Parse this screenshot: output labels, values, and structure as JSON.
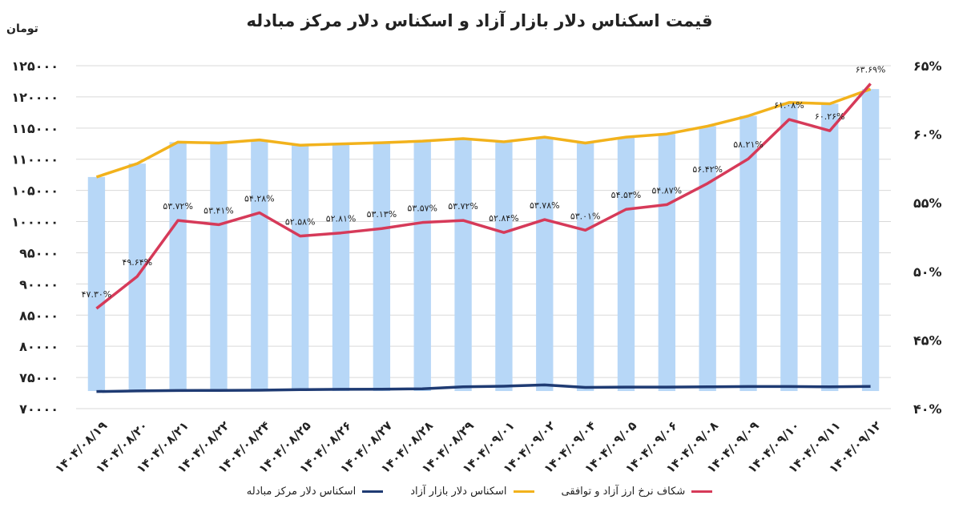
{
  "chart_data": {
    "type": "bar",
    "title": "قیمت اسکناس دلار بازار آزاد و اسکناس دلار مرکز مبادله",
    "y_unit": "تومان",
    "categories": [
      "۱۴۰۴/۰۸/۱۹",
      "۱۴۰۴/۰۸/۲۰",
      "۱۴۰۴/۰۸/۲۱",
      "۱۴۰۴/۰۸/۲۲",
      "۱۴۰۴/۰۸/۲۴",
      "۱۴۰۴/۰۸/۲۵",
      "۱۴۰۴/۰۸/۲۶",
      "۱۴۰۴/۰۸/۲۷",
      "۱۴۰۴/۰۸/۲۸",
      "۱۴۰۴/۰۸/۲۹",
      "۱۴۰۴/۰۹/۰۱",
      "۱۴۰۴/۰۹/۰۲",
      "۱۴۰۴/۰۹/۰۴",
      "۱۴۰۴/۰۹/۰۵",
      "۱۴۰۴/۰۹/۰۶",
      "۱۴۰۴/۰۹/۰۸",
      "۱۴۰۴/۰۹/۰۹",
      "۱۴۰۴/۰۹/۱۰",
      "۱۴۰۴/۰۹/۱۱",
      "۱۴۰۴/۰۹/۱۲"
    ],
    "ylim_left": [
      70000,
      125000
    ],
    "yticks_left": [
      "۷۰۰۰۰",
      "۷۵۰۰۰",
      "۸۰۰۰۰",
      "۸۵۰۰۰",
      "۹۰۰۰۰",
      "۹۵۰۰۰",
      "۱۰۰۰۰۰",
      "۱۰۵۰۰۰",
      "۱۱۰۰۰۰",
      "۱۱۵۰۰۰",
      "۱۲۰۰۰۰",
      "۱۲۵۰۰۰"
    ],
    "ylim_right": [
      40,
      65
    ],
    "yticks_right": [
      "۴۰%",
      "۴۵%",
      "۵۰%",
      "۵۵%",
      "۶۰%",
      "۶۵%"
    ],
    "grid": true,
    "legend_position": "bottom",
    "series": [
      {
        "name": "اسکناس دلار مرکز مبادله",
        "kind": "line",
        "axis": "left",
        "color": "#1f3b73",
        "values": [
          72740,
          72850,
          72900,
          72930,
          72960,
          73050,
          73100,
          73120,
          73180,
          73500,
          73600,
          73800,
          73400,
          73450,
          73450,
          73500,
          73550,
          73550,
          73500,
          73560
        ]
      },
      {
        "name": "اسکناس دلار بازار آزاد",
        "kind": "bar+line",
        "axis": "left",
        "bar_color": "#b7d7f7",
        "line_color": "#f2b21c",
        "values": [
          107150,
          109300,
          112750,
          112600,
          113100,
          112250,
          112450,
          112650,
          112900,
          113300,
          112800,
          113550,
          112600,
          113550,
          114050,
          115300,
          116950,
          119100,
          118900,
          121250
        ]
      },
      {
        "name": "شکاف نرخ ارز آزاد و توافقی",
        "kind": "line",
        "axis": "right",
        "color": "#d63a59",
        "values": [
          47.3,
          49.64,
          53.72,
          53.41,
          54.28,
          52.58,
          52.81,
          53.13,
          53.57,
          53.72,
          52.84,
          53.78,
          53.01,
          54.53,
          54.87,
          56.42,
          58.21,
          61.08,
          60.26,
          63.69
        ],
        "labels": [
          "۴۷.۳۰%",
          "۴۹.۶۴%",
          "۵۳.۷۲%",
          "۵۳.۴۱%",
          "۵۴.۲۸%",
          "۵۲.۵۸%",
          "۵۲.۸۱%",
          "۵۳.۱۳%",
          "۵۳.۵۷%",
          "۵۳.۷۲%",
          "۵۲.۸۴%",
          "۵۳.۷۸%",
          "۵۳.۰۱%",
          "۵۴.۵۳%",
          "۵۴.۸۷%",
          "۵۶.۴۲%",
          "۵۸.۲۱%",
          "۶۱.۰۸%",
          "۶۰.۲۶%",
          "۶۳.۶۹%"
        ]
      }
    ]
  }
}
